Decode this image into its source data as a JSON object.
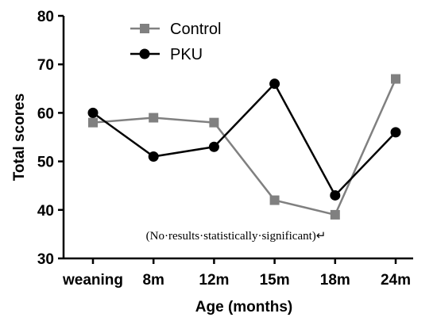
{
  "chart_data": {
    "type": "line",
    "xlabel": "Age (months)",
    "ylabel": "Total scores",
    "categories": [
      "weaning",
      "8m",
      "12m",
      "15m",
      "18m",
      "24m"
    ],
    "ylim": [
      30,
      80
    ],
    "yticks": [
      "30",
      "40",
      "50",
      "60",
      "70",
      "80"
    ],
    "series": [
      {
        "name": "Control",
        "marker": "square",
        "color": "#808080",
        "values": [
          58,
          59,
          58,
          42,
          39,
          67
        ]
      },
      {
        "name": "PKU",
        "marker": "circle",
        "color": "#000000",
        "values": [
          60,
          51,
          53,
          66,
          43,
          56
        ]
      }
    ],
    "legend_position": "top-left",
    "annotation": "(No·results·statistically·significant)↵",
    "grid": false
  }
}
